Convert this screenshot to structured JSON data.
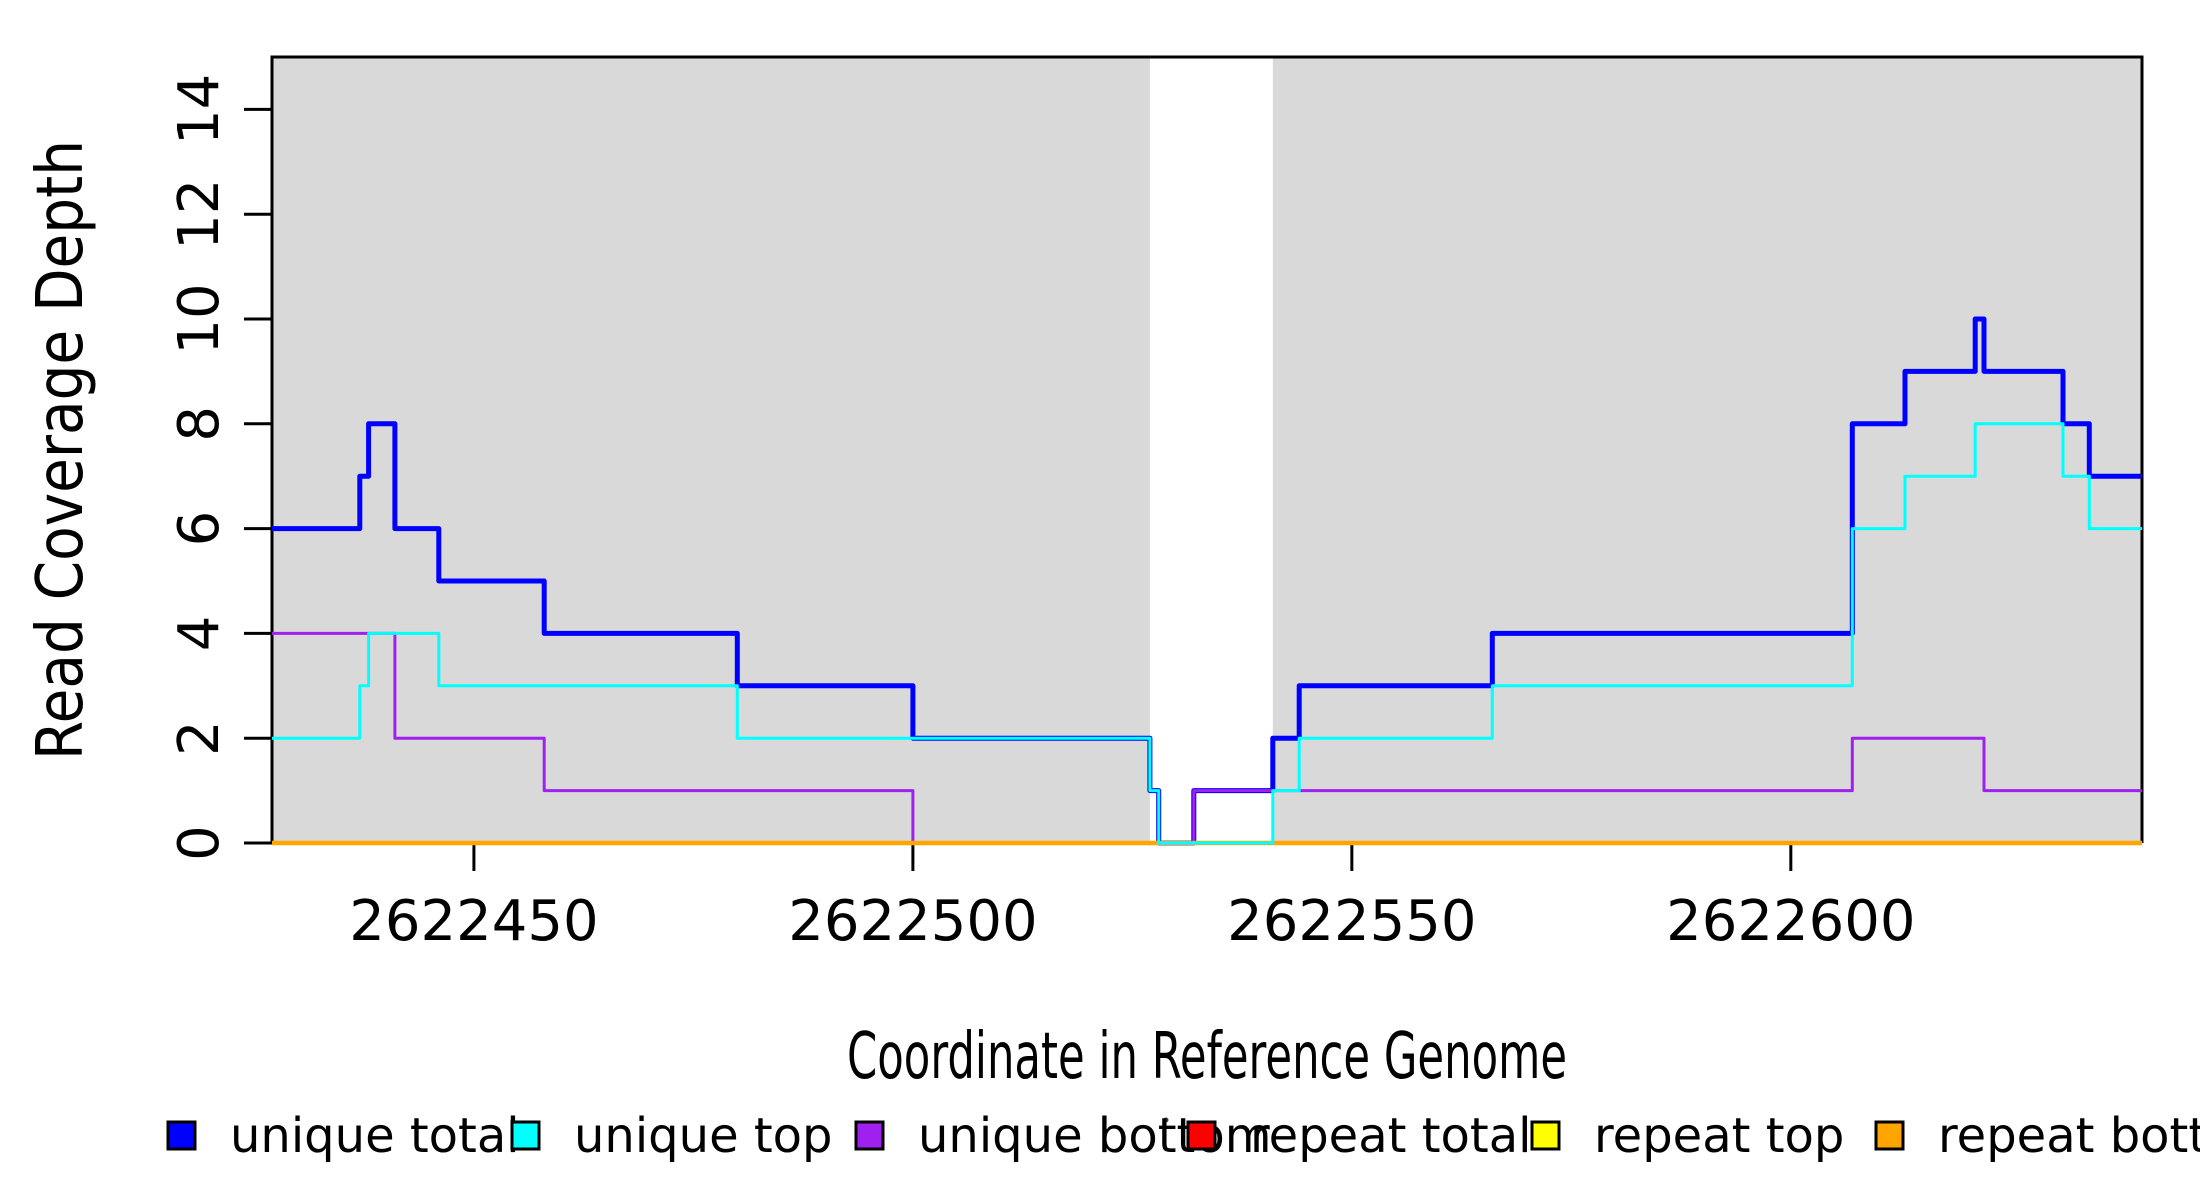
{
  "figure": {
    "background": "#ffffff",
    "plot_border_color": "#000000"
  },
  "chart_data": {
    "type": "line",
    "line_style": "step-after",
    "title": "",
    "xlabel": "Coordinate in Reference Genome",
    "ylabel": "Read Coverage Depth",
    "xlim": [
      2622427,
      2622640
    ],
    "ylim": [
      0,
      15
    ],
    "x_ticks": [
      2622450,
      2622500,
      2622550,
      2622600
    ],
    "y_ticks": [
      0,
      2,
      4,
      6,
      8,
      10,
      12,
      14
    ],
    "grid": false,
    "legend_position": "bottom",
    "shade_color": "#d9d9d9",
    "shaded_regions": [
      {
        "x0": 2622427,
        "x1": 2622527
      },
      {
        "x0": 2622541,
        "x1": 2622640
      }
    ],
    "series": [
      {
        "name": "unique total",
        "color": "#0000ff",
        "width": 5,
        "z": 1,
        "points": [
          [
            2622427,
            6
          ],
          [
            2622437,
            7
          ],
          [
            2622438,
            8
          ],
          [
            2622441,
            6
          ],
          [
            2622446,
            5
          ],
          [
            2622458,
            4
          ],
          [
            2622480,
            3
          ],
          [
            2622500,
            2
          ],
          [
            2622527,
            1
          ],
          [
            2622528,
            0
          ],
          [
            2622532,
            1
          ],
          [
            2622541,
            2
          ],
          [
            2622544,
            3
          ],
          [
            2622566,
            4
          ],
          [
            2622607,
            8
          ],
          [
            2622613,
            9
          ],
          [
            2622621,
            10
          ],
          [
            2622622,
            9
          ],
          [
            2622631,
            8
          ],
          [
            2622634,
            7
          ],
          [
            2622640,
            7
          ]
        ]
      },
      {
        "name": "unique top",
        "color": "#00ffff",
        "width": 3,
        "z": 6,
        "points": [
          [
            2622427,
            2
          ],
          [
            2622437,
            3
          ],
          [
            2622438,
            4
          ],
          [
            2622446,
            3
          ],
          [
            2622480,
            2
          ],
          [
            2622527,
            1
          ],
          [
            2622528,
            0
          ],
          [
            2622541,
            1
          ],
          [
            2622544,
            2
          ],
          [
            2622566,
            3
          ],
          [
            2622607,
            6
          ],
          [
            2622613,
            7
          ],
          [
            2622621,
            8
          ],
          [
            2622631,
            7
          ],
          [
            2622634,
            6
          ],
          [
            2622640,
            6
          ]
        ]
      },
      {
        "name": "unique bottom",
        "color": "#a020f0",
        "width": 3,
        "z": 2,
        "points": [
          [
            2622427,
            4
          ],
          [
            2622441,
            2
          ],
          [
            2622458,
            1
          ],
          [
            2622500,
            0
          ],
          [
            2622532,
            1
          ],
          [
            2622607,
            2
          ],
          [
            2622622,
            1
          ],
          [
            2622640,
            1
          ]
        ]
      },
      {
        "name": "repeat total",
        "color": "#ff0000",
        "width": 3,
        "z": 3,
        "points": [
          [
            2622427,
            0
          ],
          [
            2622640,
            0
          ]
        ]
      },
      {
        "name": "repeat top",
        "color": "#ffff00",
        "width": 3,
        "z": 4,
        "points": [
          [
            2622427,
            0
          ],
          [
            2622640,
            0
          ]
        ]
      },
      {
        "name": "repeat bottom",
        "color": "#ffa500",
        "width": 4.5,
        "z": 5,
        "points": [
          [
            2622427,
            0
          ],
          [
            2622640,
            0
          ]
        ]
      }
    ]
  }
}
